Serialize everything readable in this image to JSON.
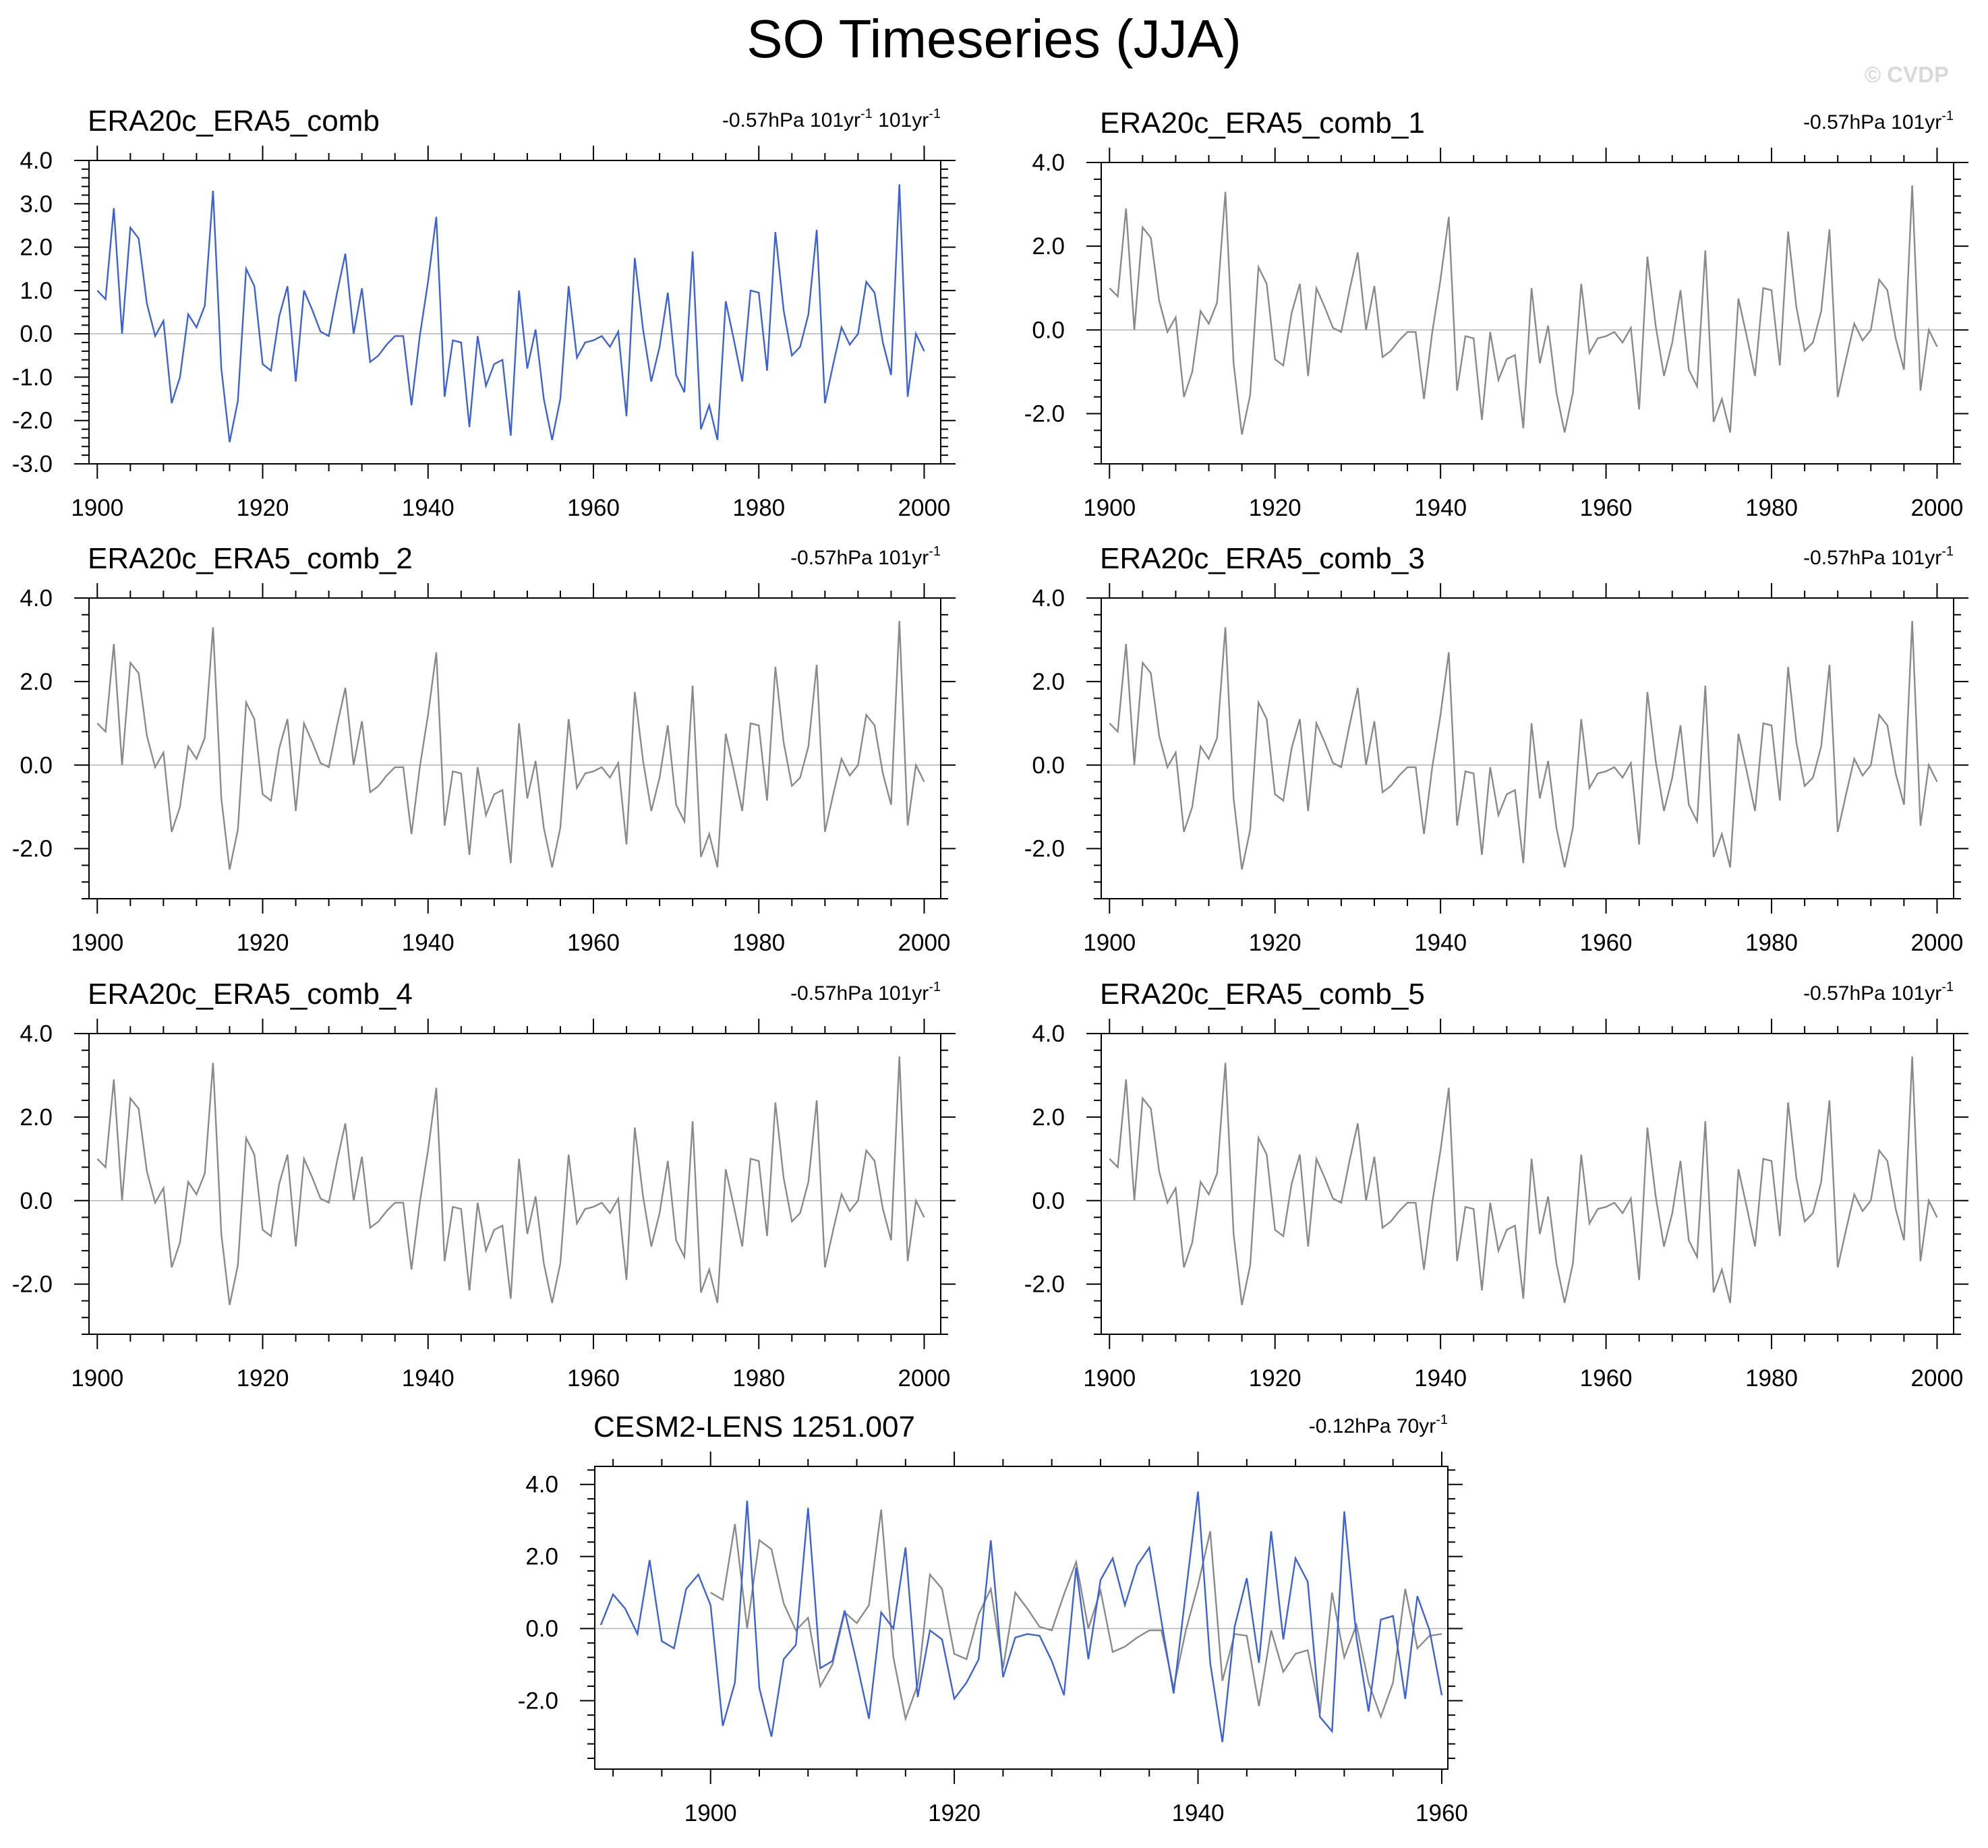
{
  "figure": {
    "title": "SO Timeseries (JJA)",
    "watermark": "© CVDP",
    "colors": {
      "highlight": "#3b62d6",
      "ensemble": "#8a8a8a",
      "zero_line": "#b4b4b4",
      "axis": "#000000"
    }
  },
  "chart_data": [
    {
      "type": "line",
      "title": "ERA20c_ERA5_comb",
      "trend_label": "-0.57hPa 101yr",
      "trend_sup": "-1",
      "trend_label2": " 101yr",
      "trend_sup2": "-1",
      "xlim": [
        1899,
        2002
      ],
      "ylim": [
        -3.0,
        4.0
      ],
      "y_ticks": [
        -3.0,
        -2.0,
        -1.0,
        0.0,
        1.0,
        2.0,
        3.0,
        4.0
      ],
      "y_tick_labels": [
        "-3.0",
        "-2.0",
        "-1.0",
        "0.0",
        "1.0",
        "2.0",
        "3.0",
        "4.0"
      ],
      "x_ticks": [
        1900,
        1920,
        1940,
        1960,
        1980,
        2000
      ],
      "x_tick_labels": [
        "1900",
        "1920",
        "1940",
        "1960",
        "1980",
        "2000"
      ],
      "series": [
        {
          "name": "ERA20c_ERA5_comb",
          "color": "#3b62d6",
          "x_start": 1900,
          "values": [
            1.0,
            0.8,
            2.9,
            0.0,
            2.45,
            2.2,
            0.7,
            -0.05,
            0.3,
            -1.6,
            -1.0,
            0.45,
            0.15,
            0.65,
            3.3,
            -0.8,
            -2.5,
            -1.55,
            1.5,
            1.1,
            -0.7,
            -0.85,
            0.4,
            1.1,
            -1.1,
            1.0,
            0.55,
            0.05,
            -0.05,
            0.95,
            1.85,
            0.0,
            1.05,
            -0.65,
            -0.5,
            -0.25,
            -0.05,
            -0.05,
            -1.65,
            -0.05,
            1.2,
            2.7,
            -1.45,
            -0.15,
            -0.2,
            -2.15,
            -0.05,
            -1.2,
            -0.7,
            -0.6,
            -2.35,
            1.0,
            -0.8,
            0.1,
            -1.5,
            -2.45,
            -1.5,
            1.1,
            -0.55,
            -0.2,
            -0.15,
            -0.05,
            -0.3,
            0.05,
            -1.9,
            1.75,
            0.1,
            -1.1,
            -0.3,
            0.95,
            -0.95,
            -1.35,
            1.9,
            -2.2,
            -1.65,
            -2.45,
            0.75,
            -0.15,
            -1.1,
            1.0,
            0.95,
            -0.85,
            2.35,
            0.55,
            -0.5,
            -0.3,
            0.45,
            2.4,
            -1.6,
            -0.7,
            0.15,
            -0.25,
            0.0,
            1.2,
            0.95,
            -0.2,
            -0.95,
            3.45,
            -1.45,
            0.0,
            -0.4
          ]
        }
      ]
    },
    {
      "type": "line",
      "title": "ERA20c_ERA5_comb_1",
      "trend_label": "-0.57hPa 101yr",
      "trend_sup": "-1",
      "xlim": [
        1899,
        2002
      ],
      "ylim": [
        -3.2,
        4.0
      ],
      "y_ticks": [
        -2.0,
        0.0,
        2.0,
        4.0
      ],
      "y_tick_labels": [
        "-2.0",
        "0.0",
        "2.0",
        "4.0"
      ],
      "x_ticks": [
        1900,
        1920,
        1940,
        1960,
        1980,
        2000
      ],
      "x_tick_labels": [
        "1900",
        "1920",
        "1940",
        "1960",
        "1980",
        "2000"
      ],
      "series": [
        {
          "name": "ERA20c_ERA5_comb_1",
          "color": "#8a8a8a",
          "x_start": 1900,
          "values": [
            1.0,
            0.8,
            2.9,
            0.0,
            2.45,
            2.2,
            0.7,
            -0.05,
            0.3,
            -1.6,
            -1.0,
            0.45,
            0.15,
            0.65,
            3.3,
            -0.8,
            -2.5,
            -1.55,
            1.5,
            1.1,
            -0.7,
            -0.85,
            0.4,
            1.1,
            -1.1,
            1.0,
            0.55,
            0.05,
            -0.05,
            0.95,
            1.85,
            0.0,
            1.05,
            -0.65,
            -0.5,
            -0.25,
            -0.05,
            -0.05,
            -1.65,
            -0.05,
            1.2,
            2.7,
            -1.45,
            -0.15,
            -0.2,
            -2.15,
            -0.05,
            -1.2,
            -0.7,
            -0.6,
            -2.35,
            1.0,
            -0.8,
            0.1,
            -1.5,
            -2.45,
            -1.5,
            1.1,
            -0.55,
            -0.2,
            -0.15,
            -0.05,
            -0.3,
            0.05,
            -1.9,
            1.75,
            0.1,
            -1.1,
            -0.3,
            0.95,
            -0.95,
            -1.35,
            1.9,
            -2.2,
            -1.65,
            -2.45,
            0.75,
            -0.15,
            -1.1,
            1.0,
            0.95,
            -0.85,
            2.35,
            0.55,
            -0.5,
            -0.3,
            0.45,
            2.4,
            -1.6,
            -0.7,
            0.15,
            -0.25,
            0.0,
            1.2,
            0.95,
            -0.2,
            -0.95,
            3.45,
            -1.45,
            0.0,
            -0.4
          ]
        }
      ]
    },
    {
      "type": "line",
      "title": "ERA20c_ERA5_comb_2",
      "trend_label": "-0.57hPa 101yr",
      "trend_sup": "-1",
      "xlim": [
        1899,
        2002
      ],
      "ylim": [
        -3.2,
        4.0
      ],
      "y_ticks": [
        -2.0,
        0.0,
        2.0,
        4.0
      ],
      "y_tick_labels": [
        "-2.0",
        "0.0",
        "2.0",
        "4.0"
      ],
      "x_ticks": [
        1900,
        1920,
        1940,
        1960,
        1980,
        2000
      ],
      "x_tick_labels": [
        "1900",
        "1920",
        "1940",
        "1960",
        "1980",
        "2000"
      ],
      "series": [
        {
          "name": "ERA20c_ERA5_comb_2",
          "color": "#8a8a8a",
          "x_start": 1900,
          "values": [
            1.0,
            0.8,
            2.9,
            0.0,
            2.45,
            2.2,
            0.7,
            -0.05,
            0.3,
            -1.6,
            -1.0,
            0.45,
            0.15,
            0.65,
            3.3,
            -0.8,
            -2.5,
            -1.55,
            1.5,
            1.1,
            -0.7,
            -0.85,
            0.4,
            1.1,
            -1.1,
            1.0,
            0.55,
            0.05,
            -0.05,
            0.95,
            1.85,
            0.0,
            1.05,
            -0.65,
            -0.5,
            -0.25,
            -0.05,
            -0.05,
            -1.65,
            -0.05,
            1.2,
            2.7,
            -1.45,
            -0.15,
            -0.2,
            -2.15,
            -0.05,
            -1.2,
            -0.7,
            -0.6,
            -2.35,
            1.0,
            -0.8,
            0.1,
            -1.5,
            -2.45,
            -1.5,
            1.1,
            -0.55,
            -0.2,
            -0.15,
            -0.05,
            -0.3,
            0.05,
            -1.9,
            1.75,
            0.1,
            -1.1,
            -0.3,
            0.95,
            -0.95,
            -1.35,
            1.9,
            -2.2,
            -1.65,
            -2.45,
            0.75,
            -0.15,
            -1.1,
            1.0,
            0.95,
            -0.85,
            2.35,
            0.55,
            -0.5,
            -0.3,
            0.45,
            2.4,
            -1.6,
            -0.7,
            0.15,
            -0.25,
            0.0,
            1.2,
            0.95,
            -0.2,
            -0.95,
            3.45,
            -1.45,
            0.0,
            -0.4
          ]
        }
      ]
    },
    {
      "type": "line",
      "title": "ERA20c_ERA5_comb_3",
      "trend_label": "-0.57hPa 101yr",
      "trend_sup": "-1",
      "xlim": [
        1899,
        2002
      ],
      "ylim": [
        -3.2,
        4.0
      ],
      "y_ticks": [
        -2.0,
        0.0,
        2.0,
        4.0
      ],
      "y_tick_labels": [
        "-2.0",
        "0.0",
        "2.0",
        "4.0"
      ],
      "x_ticks": [
        1900,
        1920,
        1940,
        1960,
        1980,
        2000
      ],
      "x_tick_labels": [
        "1900",
        "1920",
        "1940",
        "1960",
        "1980",
        "2000"
      ],
      "series": [
        {
          "name": "ERA20c_ERA5_comb_3",
          "color": "#8a8a8a",
          "x_start": 1900,
          "values": [
            1.0,
            0.8,
            2.9,
            0.0,
            2.45,
            2.2,
            0.7,
            -0.05,
            0.3,
            -1.6,
            -1.0,
            0.45,
            0.15,
            0.65,
            3.3,
            -0.8,
            -2.5,
            -1.55,
            1.5,
            1.1,
            -0.7,
            -0.85,
            0.4,
            1.1,
            -1.1,
            1.0,
            0.55,
            0.05,
            -0.05,
            0.95,
            1.85,
            0.0,
            1.05,
            -0.65,
            -0.5,
            -0.25,
            -0.05,
            -0.05,
            -1.65,
            -0.05,
            1.2,
            2.7,
            -1.45,
            -0.15,
            -0.2,
            -2.15,
            -0.05,
            -1.2,
            -0.7,
            -0.6,
            -2.35,
            1.0,
            -0.8,
            0.1,
            -1.5,
            -2.45,
            -1.5,
            1.1,
            -0.55,
            -0.2,
            -0.15,
            -0.05,
            -0.3,
            0.05,
            -1.9,
            1.75,
            0.1,
            -1.1,
            -0.3,
            0.95,
            -0.95,
            -1.35,
            1.9,
            -2.2,
            -1.65,
            -2.45,
            0.75,
            -0.15,
            -1.1,
            1.0,
            0.95,
            -0.85,
            2.35,
            0.55,
            -0.5,
            -0.3,
            0.45,
            2.4,
            -1.6,
            -0.7,
            0.15,
            -0.25,
            0.0,
            1.2,
            0.95,
            -0.2,
            -0.95,
            3.45,
            -1.45,
            0.0,
            -0.4
          ]
        }
      ]
    },
    {
      "type": "line",
      "title": "ERA20c_ERA5_comb_4",
      "trend_label": "-0.57hPa 101yr",
      "trend_sup": "-1",
      "xlim": [
        1899,
        2002
      ],
      "ylim": [
        -3.2,
        4.0
      ],
      "y_ticks": [
        -2.0,
        0.0,
        2.0,
        4.0
      ],
      "y_tick_labels": [
        "-2.0",
        "0.0",
        "2.0",
        "4.0"
      ],
      "x_ticks": [
        1900,
        1920,
        1940,
        1960,
        1980,
        2000
      ],
      "x_tick_labels": [
        "1900",
        "1920",
        "1940",
        "1960",
        "1980",
        "2000"
      ],
      "series": [
        {
          "name": "ERA20c_ERA5_comb_4",
          "color": "#8a8a8a",
          "x_start": 1900,
          "values": [
            1.0,
            0.8,
            2.9,
            0.0,
            2.45,
            2.2,
            0.7,
            -0.05,
            0.3,
            -1.6,
            -1.0,
            0.45,
            0.15,
            0.65,
            3.3,
            -0.8,
            -2.5,
            -1.55,
            1.5,
            1.1,
            -0.7,
            -0.85,
            0.4,
            1.1,
            -1.1,
            1.0,
            0.55,
            0.05,
            -0.05,
            0.95,
            1.85,
            0.0,
            1.05,
            -0.65,
            -0.5,
            -0.25,
            -0.05,
            -0.05,
            -1.65,
            -0.05,
            1.2,
            2.7,
            -1.45,
            -0.15,
            -0.2,
            -2.15,
            -0.05,
            -1.2,
            -0.7,
            -0.6,
            -2.35,
            1.0,
            -0.8,
            0.1,
            -1.5,
            -2.45,
            -1.5,
            1.1,
            -0.55,
            -0.2,
            -0.15,
            -0.05,
            -0.3,
            0.05,
            -1.9,
            1.75,
            0.1,
            -1.1,
            -0.3,
            0.95,
            -0.95,
            -1.35,
            1.9,
            -2.2,
            -1.65,
            -2.45,
            0.75,
            -0.15,
            -1.1,
            1.0,
            0.95,
            -0.85,
            2.35,
            0.55,
            -0.5,
            -0.3,
            0.45,
            2.4,
            -1.6,
            -0.7,
            0.15,
            -0.25,
            0.0,
            1.2,
            0.95,
            -0.2,
            -0.95,
            3.45,
            -1.45,
            0.0,
            -0.4
          ]
        }
      ]
    },
    {
      "type": "line",
      "title": "ERA20c_ERA5_comb_5",
      "trend_label": "-0.57hPa 101yr",
      "trend_sup": "-1",
      "xlim": [
        1899,
        2002
      ],
      "ylim": [
        -3.2,
        4.0
      ],
      "y_ticks": [
        -2.0,
        0.0,
        2.0,
        4.0
      ],
      "y_tick_labels": [
        "-2.0",
        "0.0",
        "2.0",
        "4.0"
      ],
      "x_ticks": [
        1900,
        1920,
        1940,
        1960,
        1980,
        2000
      ],
      "x_tick_labels": [
        "1900",
        "1920",
        "1940",
        "1960",
        "1980",
        "2000"
      ],
      "series": [
        {
          "name": "ERA20c_ERA5_comb_5",
          "color": "#8a8a8a",
          "x_start": 1900,
          "values": [
            1.0,
            0.8,
            2.9,
            0.0,
            2.45,
            2.2,
            0.7,
            -0.05,
            0.3,
            -1.6,
            -1.0,
            0.45,
            0.15,
            0.65,
            3.3,
            -0.8,
            -2.5,
            -1.55,
            1.5,
            1.1,
            -0.7,
            -0.85,
            0.4,
            1.1,
            -1.1,
            1.0,
            0.55,
            0.05,
            -0.05,
            0.95,
            1.85,
            0.0,
            1.05,
            -0.65,
            -0.5,
            -0.25,
            -0.05,
            -0.05,
            -1.65,
            -0.05,
            1.2,
            2.7,
            -1.45,
            -0.15,
            -0.2,
            -2.15,
            -0.05,
            -1.2,
            -0.7,
            -0.6,
            -2.35,
            1.0,
            -0.8,
            0.1,
            -1.5,
            -2.45,
            -1.5,
            1.1,
            -0.55,
            -0.2,
            -0.15,
            -0.05,
            -0.3,
            0.05,
            -1.9,
            1.75,
            0.1,
            -1.1,
            -0.3,
            0.95,
            -0.95,
            -1.35,
            1.9,
            -2.2,
            -1.65,
            -2.45,
            0.75,
            -0.15,
            -1.1,
            1.0,
            0.95,
            -0.85,
            2.35,
            0.55,
            -0.5,
            -0.3,
            0.45,
            2.4,
            -1.6,
            -0.7,
            0.15,
            -0.25,
            0.0,
            1.2,
            0.95,
            -0.2,
            -0.95,
            3.45,
            -1.45,
            0.0,
            -0.4
          ]
        }
      ]
    },
    {
      "type": "line",
      "title": "CESM2-LENS 1251.007",
      "trend_label": "-0.12hPa 70yr",
      "trend_sup": "-1",
      "xlim": [
        1890.5,
        1960.5
      ],
      "ylim": [
        -3.9,
        4.5
      ],
      "y_ticks": [
        -2.0,
        0.0,
        2.0,
        4.0
      ],
      "y_tick_labels": [
        "-2.0",
        "0.0",
        "2.0",
        "4.0"
      ],
      "x_ticks": [
        1900,
        1920,
        1940,
        1960
      ],
      "x_tick_labels": [
        "1900",
        "1920",
        "1940",
        "1960"
      ],
      "series": [
        {
          "name": "ERA20c_ERA5_comb",
          "color": "#8a8a8a",
          "x_start": 1900,
          "values": [
            1.0,
            0.8,
            2.9,
            0.0,
            2.45,
            2.2,
            0.7,
            -0.05,
            0.3,
            -1.6,
            -1.0,
            0.45,
            0.15,
            0.65,
            3.3,
            -0.8,
            -2.5,
            -1.55,
            1.5,
            1.1,
            -0.7,
            -0.85,
            0.4,
            1.1,
            -1.1,
            1.0,
            0.55,
            0.05,
            -0.05,
            0.95,
            1.85,
            0.0,
            1.05,
            -0.65,
            -0.5,
            -0.25,
            -0.05,
            -0.05,
            -1.65,
            -0.05,
            1.2,
            2.7,
            -1.45,
            -0.15,
            -0.2,
            -2.15,
            -0.05,
            -1.2,
            -0.7,
            -0.6,
            -2.35,
            1.0,
            -0.8,
            0.1,
            -1.5,
            -2.45,
            -1.5,
            1.1,
            -0.55,
            -0.2,
            -0.15
          ]
        },
        {
          "name": "CESM2-LENS 1251.007",
          "color": "#3b62d6",
          "x_start": 1891,
          "values": [
            0.1,
            0.95,
            0.55,
            -0.15,
            1.9,
            -0.35,
            -0.55,
            1.1,
            1.5,
            0.65,
            -2.7,
            -1.5,
            3.55,
            -1.65,
            -3.0,
            -0.85,
            -0.45,
            3.35,
            -1.1,
            -0.9,
            0.5,
            -0.95,
            -2.5,
            0.45,
            0.0,
            2.25,
            -1.9,
            -0.05,
            -0.3,
            -1.95,
            -1.5,
            -0.85,
            2.45,
            -1.35,
            -0.25,
            -0.15,
            -0.2,
            -0.9,
            -1.85,
            1.7,
            -0.85,
            1.35,
            1.95,
            0.65,
            1.75,
            2.25,
            0.2,
            -1.8,
            1.0,
            3.8,
            -0.95,
            -3.15,
            0.05,
            1.4,
            -0.95,
            2.7,
            -0.3,
            1.95,
            1.3,
            -2.45,
            -2.85,
            3.25,
            -0.25,
            -2.3,
            0.25,
            0.35,
            -1.95,
            0.9,
            -0.05,
            -1.85
          ]
        }
      ]
    }
  ]
}
